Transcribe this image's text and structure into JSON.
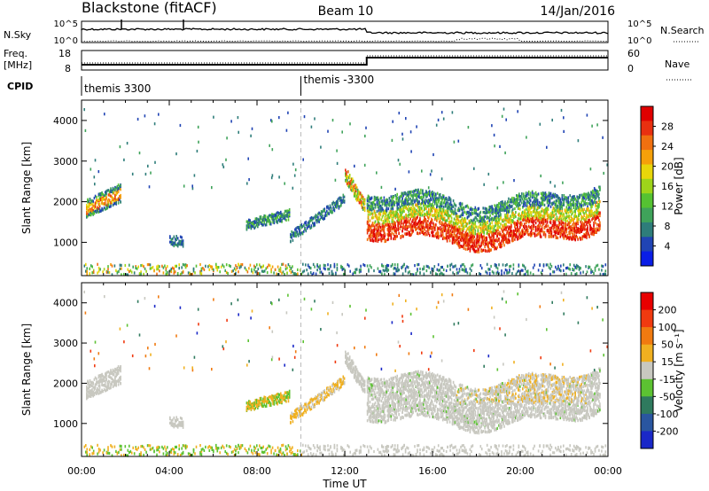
{
  "header": {
    "station": "Blackstone (fitACF)",
    "beam": "Beam 10",
    "date": "14/Jan/2016"
  },
  "strips": {
    "nsky_label": "N.Sky",
    "nsearch_label": "N.Search",
    "nsky_ticks": [
      "10^5",
      "10^0"
    ],
    "nsearch_ticks": [
      "10^5",
      "10^0"
    ],
    "freq_label_1": "Freq.",
    "freq_label_2": "[MHz]",
    "freq_ticks": [
      "18",
      "8"
    ],
    "nave_label": "Nave",
    "nave_ticks": [
      "60",
      "0"
    ],
    "cpid_label": "CPID",
    "cpid_segments": [
      {
        "label": "themis 3300",
        "start_hour": 0
      },
      {
        "label": "themis -3300",
        "start_hour": 10
      }
    ]
  },
  "chart_data": [
    {
      "type": "heatmap",
      "name": "power",
      "ylabel": "Slant Range [km]",
      "xlabel": "",
      "xlim": [
        0,
        24
      ],
      "ylim": [
        180,
        4500
      ],
      "yticks": [
        1000,
        2000,
        3000,
        4000
      ],
      "ytick_labels": [
        "1000",
        "2000",
        "3000",
        "4000"
      ],
      "colorbar": {
        "label": "Power [dB]",
        "range": [
          0,
          32
        ],
        "ticks": [
          "4",
          "8",
          "12",
          "16",
          "20",
          "24",
          "28"
        ],
        "colors": [
          "#0a1ee6",
          "#2044b4",
          "#2e7d7a",
          "#3fa35a",
          "#55c232",
          "#9ed41a",
          "#e8d60a",
          "#f5a00a",
          "#f07010",
          "#e83010",
          "#e00000"
        ]
      }
    },
    {
      "type": "heatmap",
      "name": "velocity",
      "ylabel": "Slant Range [km]",
      "xlabel": "Time UT",
      "xlim": [
        0,
        24
      ],
      "ylim": [
        180,
        4500
      ],
      "yticks": [
        1000,
        2000,
        3000,
        4000
      ],
      "ytick_labels": [
        "1000",
        "2000",
        "3000",
        "4000"
      ],
      "xtick_labels": [
        "00:00",
        "04:00",
        "08:00",
        "12:00",
        "16:00",
        "20:00",
        "00:00"
      ],
      "colorbar": {
        "label": "Velocity [m s⁻¹]",
        "ticks": [
          "200",
          "100",
          "50",
          "15",
          "-15",
          "-50",
          "-100",
          "-200"
        ],
        "colors": [
          "#1a28c8",
          "#2a56a0",
          "#2f7a5e",
          "#5cc232",
          "#c8c8c0",
          "#f0b020",
          "#f07a10",
          "#f03a10",
          "#e80000"
        ]
      }
    }
  ]
}
